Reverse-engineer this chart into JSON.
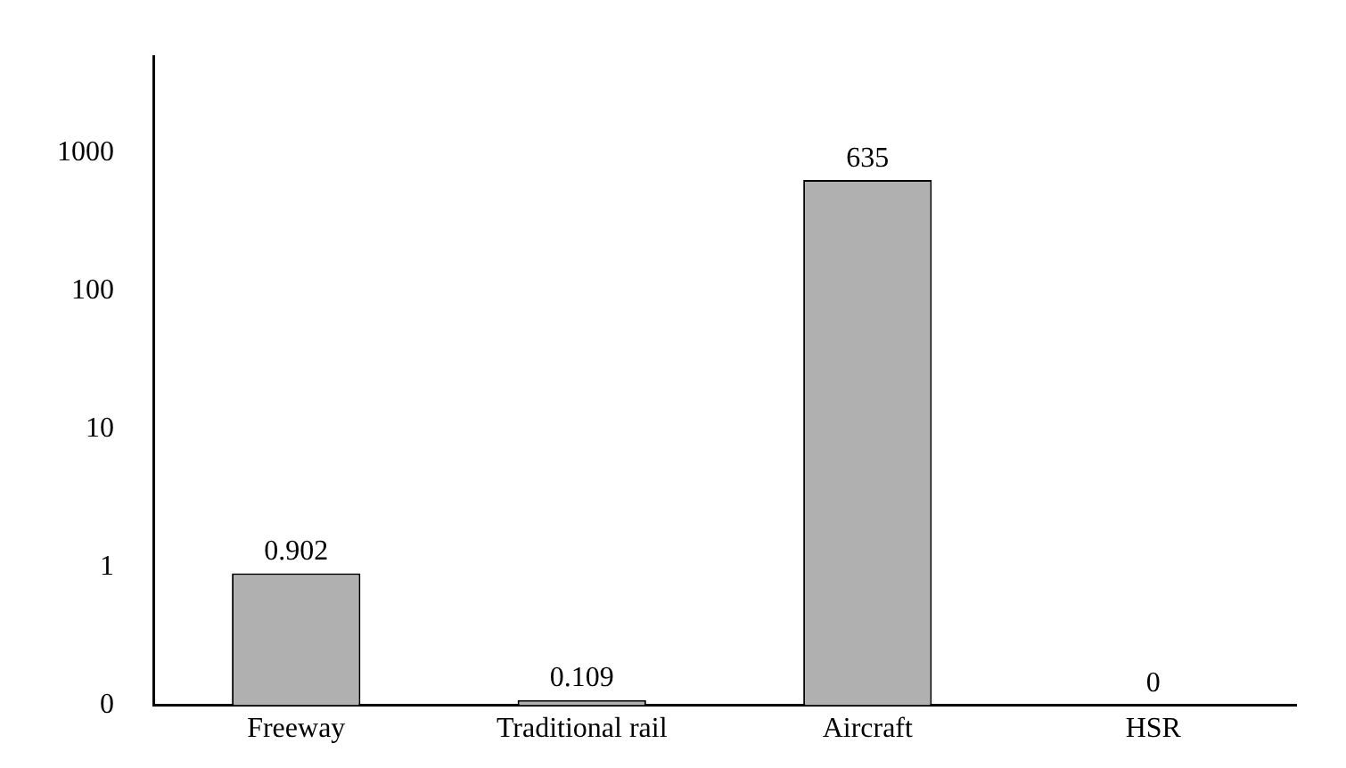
{
  "chart_data": {
    "type": "bar",
    "categories": [
      "Freeway",
      "Traditional rail",
      "Aircraft",
      "HSR"
    ],
    "values": [
      0.902,
      0.109,
      635,
      0
    ],
    "colors": [
      "#b0b0b0",
      "#b0b0b0",
      "#b0b0b0",
      "#b0b0b0"
    ],
    "log": true,
    "ylim": [
      0,
      5000
    ],
    "yticks": [
      0,
      1,
      10,
      100,
      1000
    ],
    "grid": false,
    "legend": false,
    "data_labels": true
  }
}
